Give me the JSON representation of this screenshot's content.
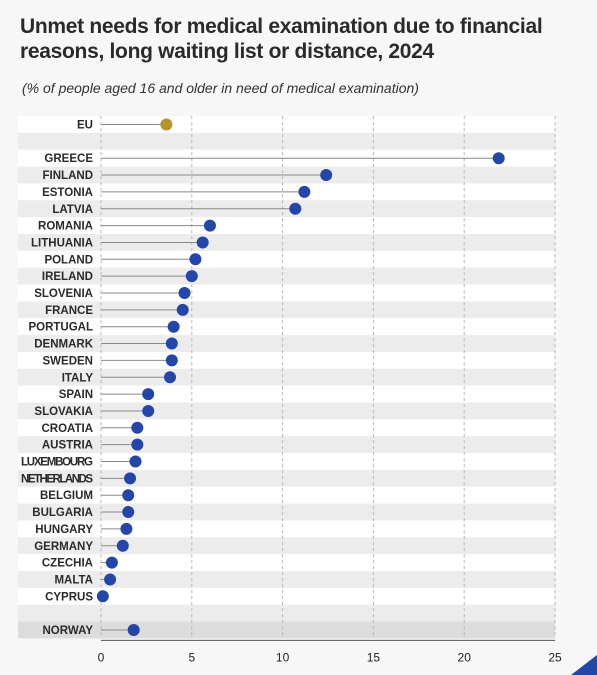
{
  "title": "Unmet needs for medical examination due to financial reasons, long waiting list or distance, 2024",
  "subtitle": "(% of people aged 16 and older in need of medical examination)",
  "colors": {
    "eu_marker": "#b8922a",
    "country_marker": "#2446a8",
    "stripe": "#ececec",
    "background": "#f7f7f7",
    "grid": "#b5b5b5",
    "stem": "#888888",
    "accent": "#2446a8"
  },
  "chart_data": {
    "type": "scatter",
    "style": "dot-plot",
    "title": "Unmet needs for medical examination due to financial reasons, long waiting list or distance, 2024",
    "subtitle": "(% of people aged 16 and older in need of medical examination)",
    "xlim": [
      0,
      25
    ],
    "xticks": [
      0,
      5,
      10,
      15,
      20,
      25
    ],
    "grid": "vertical dashed",
    "groups": [
      {
        "name": "eu",
        "items": [
          {
            "label": "EU",
            "value": 3.6
          }
        ]
      },
      {
        "name": "countries",
        "items": [
          {
            "label": "GREECE",
            "value": 21.9
          },
          {
            "label": "FINLAND",
            "value": 12.4
          },
          {
            "label": "ESTONIA",
            "value": 11.2
          },
          {
            "label": "LATVIA",
            "value": 10.7
          },
          {
            "label": "ROMANIA",
            "value": 6.0
          },
          {
            "label": "LITHUANIA",
            "value": 5.6
          },
          {
            "label": "POLAND",
            "value": 5.2
          },
          {
            "label": "IRELAND",
            "value": 5.0
          },
          {
            "label": "SLOVENIA",
            "value": 4.6
          },
          {
            "label": "FRANCE",
            "value": 4.5
          },
          {
            "label": "PORTUGAL",
            "value": 4.0
          },
          {
            "label": "DENMARK",
            "value": 3.9
          },
          {
            "label": "SWEDEN",
            "value": 3.9
          },
          {
            "label": "ITALY",
            "value": 3.8
          },
          {
            "label": "SPAIN",
            "value": 2.6
          },
          {
            "label": "SLOVAKIA",
            "value": 2.6
          },
          {
            "label": "CROATIA",
            "value": 2.0
          },
          {
            "label": "AUSTRIA",
            "value": 2.0
          },
          {
            "label": "LUXEMBOURG",
            "value": 1.9
          },
          {
            "label": "NETHERLANDS",
            "value": 1.6
          },
          {
            "label": "BELGIUM",
            "value": 1.5
          },
          {
            "label": "BULGARIA",
            "value": 1.5
          },
          {
            "label": "HUNGARY",
            "value": 1.4
          },
          {
            "label": "GERMANY",
            "value": 1.2
          },
          {
            "label": "CZECHIA",
            "value": 0.6
          },
          {
            "label": "MALTA",
            "value": 0.5
          },
          {
            "label": "CYPRUS",
            "value": 0.1
          }
        ]
      },
      {
        "name": "other",
        "items": [
          {
            "label": "NORWAY",
            "value": 1.8
          }
        ]
      }
    ]
  }
}
